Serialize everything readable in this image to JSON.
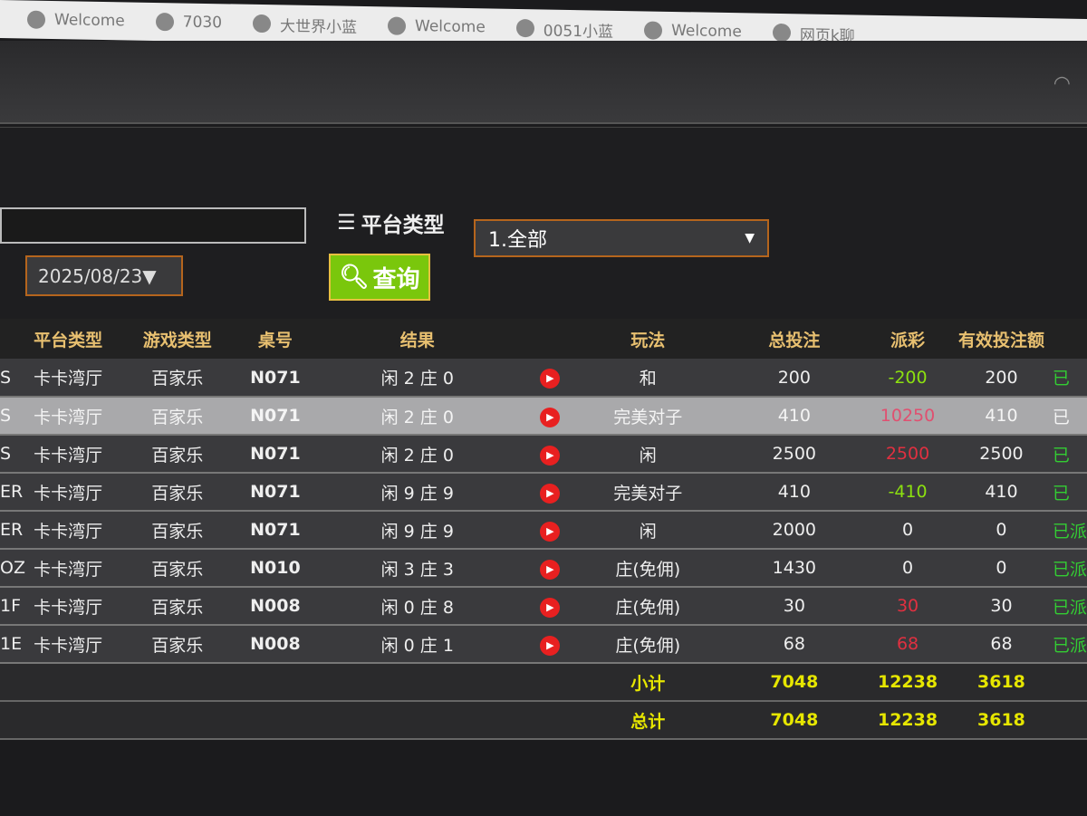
{
  "browser_tabs": [
    "Welcome",
    "7030",
    "大世界小蓝",
    "Welcome",
    "0051小蓝",
    "Welcome",
    "网页k聊"
  ],
  "filters": {
    "search_value": "",
    "date": "2025/08/23",
    "platform_label": "平台类型",
    "platform_selected": "1.全部",
    "query_label": "查询"
  },
  "table": {
    "headers": [
      "",
      "平台类型",
      "游戏类型",
      "桌号",
      "结果",
      "",
      "玩法",
      "总投注",
      "派彩",
      "有效投注额",
      ""
    ],
    "rows": [
      {
        "id": "S",
        "platform": "卡卡湾厅",
        "game": "百家乐",
        "table": "N071",
        "result": "闲 2 庄 0",
        "play": "和",
        "bet": "200",
        "payout": "-200",
        "payout_color": "#8ce010",
        "valid": "200",
        "status": "已"
      },
      {
        "id": "S",
        "platform": "卡卡湾厅",
        "game": "百家乐",
        "table": "N071",
        "result": "闲 2 庄 0",
        "play": "完美对子",
        "bet": "410",
        "payout": "10250",
        "payout_color": "#e05070",
        "valid": "410",
        "status": "已"
      },
      {
        "id": "S",
        "platform": "卡卡湾厅",
        "game": "百家乐",
        "table": "N071",
        "result": "闲 2 庄 0",
        "play": "闲",
        "bet": "2500",
        "payout": "2500",
        "payout_color": "#e03040",
        "valid": "2500",
        "status": "已"
      },
      {
        "id": "ER",
        "platform": "卡卡湾厅",
        "game": "百家乐",
        "table": "N071",
        "result": "闲 9 庄 9",
        "play": "完美对子",
        "bet": "410",
        "payout": "-410",
        "payout_color": "#8ce010",
        "valid": "410",
        "status": "已"
      },
      {
        "id": "ER",
        "platform": "卡卡湾厅",
        "game": "百家乐",
        "table": "N071",
        "result": "闲 9 庄 9",
        "play": "闲",
        "bet": "2000",
        "payout": "0",
        "payout_color": "#eeeeee",
        "valid": "0",
        "status": "已派"
      },
      {
        "id": "OZ",
        "platform": "卡卡湾厅",
        "game": "百家乐",
        "table": "N010",
        "result": "闲 3 庄 3",
        "play": "庄(免佣)",
        "bet": "1430",
        "payout": "0",
        "payout_color": "#eeeeee",
        "valid": "0",
        "status": "已派"
      },
      {
        "id": "1F",
        "platform": "卡卡湾厅",
        "game": "百家乐",
        "table": "N008",
        "result": "闲 0 庄 8",
        "play": "庄(免佣)",
        "bet": "30",
        "payout": "30",
        "payout_color": "#e03040",
        "valid": "30",
        "status": "已派"
      },
      {
        "id": "1E",
        "platform": "卡卡湾厅",
        "game": "百家乐",
        "table": "N008",
        "result": "闲 0 庄 1",
        "play": "庄(免佣)",
        "bet": "68",
        "payout": "68",
        "payout_color": "#e03040",
        "valid": "68",
        "status": "已派"
      }
    ],
    "subtotal": {
      "label": "小计",
      "bet": "7048",
      "payout": "12238",
      "valid": "3618"
    },
    "total": {
      "label": "总计",
      "bet": "7048",
      "payout": "12238",
      "valid": "3618"
    }
  }
}
